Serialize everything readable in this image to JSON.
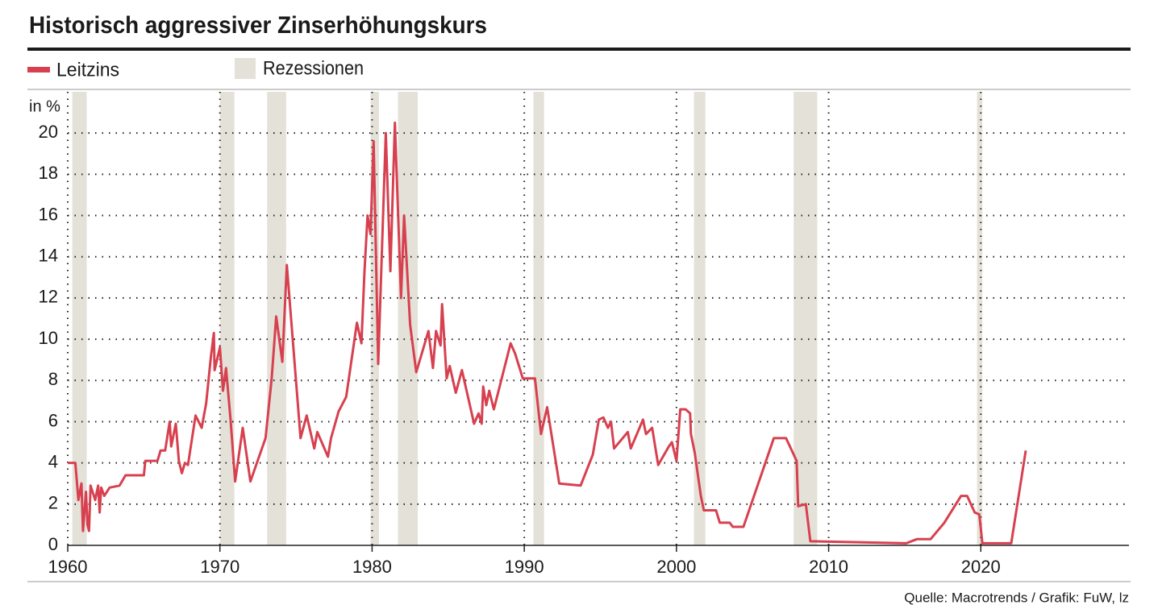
{
  "chart_data": {
    "type": "line",
    "title": "Historisch aggressiver Zinserhöhungskurs",
    "y_label": "in %",
    "source": "Quelle: Macrotrends / Grafik: FuW, lz",
    "xlim": [
      1960,
      2030
    ],
    "xticks": [
      1960,
      1970,
      1980,
      1990,
      2000,
      2010,
      2020
    ],
    "ylim": [
      0,
      22
    ],
    "yticks": [
      0,
      2,
      4,
      6,
      8,
      10,
      12,
      14,
      16,
      18,
      20
    ],
    "grid": true,
    "series": [
      {
        "name": "Leitzins",
        "color": "#d7404f",
        "x": [
          1960,
          1960.5,
          1960.7,
          1960.9,
          1961.0,
          1961.2,
          1961.3,
          1961.4,
          1961.5,
          1961.8,
          1962.0,
          1962.1,
          1962.2,
          1962.4,
          1962.75,
          1963.4,
          1963.8,
          1965.0,
          1965.1,
          1965.9,
          1966.1,
          1966.4,
          1966.7,
          1966.8,
          1967.1,
          1967.3,
          1967.5,
          1967.7,
          1967.9,
          1968.4,
          1968.8,
          1969.1,
          1969.4,
          1969.6,
          1969.65,
          1970.0,
          1970.2,
          1970.4,
          1970.7,
          1971.0,
          1971.5,
          1972.0,
          1973.0,
          1973.4,
          1973.7,
          1974.1,
          1974.4,
          1975.3,
          1975.7,
          1976.2,
          1976.4,
          1977.1,
          1977.3,
          1977.8,
          1978.3,
          1979.0,
          1979.3,
          1979.5,
          1979.7,
          1979.9,
          1980.1,
          1980.4,
          1980.9,
          1981.2,
          1981.5,
          1981.9,
          1982.1,
          1982.5,
          1982.9,
          1983.7,
          1984.0,
          1984.2,
          1984.5,
          1984.6,
          1984.9,
          1985.1,
          1985.5,
          1985.9,
          1986.7,
          1987.0,
          1987.2,
          1987.3,
          1987.5,
          1987.7,
          1988.0,
          1989.1,
          1989.4,
          1989.9,
          1990.7,
          1991.1,
          1991.5,
          1992.3,
          1993.7,
          1994.5,
          1994.9,
          1995.2,
          1995.5,
          1995.7,
          1995.9,
          1996.8,
          1997.0,
          1997.4,
          1997.8,
          1998.0,
          1998.4,
          1998.8,
          1999.5,
          1999.7,
          2000.0,
          2000.25,
          2000.6,
          2000.9,
          2000.95,
          2001.2,
          2001.6,
          2001.8,
          2002.6,
          2002.85,
          2003.5,
          2003.7,
          2004.4,
          2006.4,
          2007.2,
          2007.9,
          2008.0,
          2008.5,
          2008.8,
          2015.1,
          2015.8,
          2016.7,
          2017.6,
          2018.7,
          2019.1,
          2019.6,
          2019.9,
          2020.1,
          2022.0,
          2022.95
        ],
        "values": [
          4.0,
          4.0,
          2.2,
          3.0,
          0.7,
          2.6,
          1.0,
          0.7,
          2.9,
          2.2,
          2.9,
          1.6,
          2.8,
          2.4,
          2.8,
          2.9,
          3.4,
          3.4,
          4.1,
          4.1,
          4.6,
          4.6,
          6.0,
          4.8,
          5.9,
          4.1,
          3.5,
          4.0,
          3.9,
          6.3,
          5.7,
          6.9,
          9.1,
          10.3,
          8.5,
          9.6,
          7.5,
          8.6,
          6.1,
          3.1,
          5.7,
          3.1,
          5.2,
          8.1,
          11.1,
          8.9,
          13.6,
          5.2,
          6.3,
          4.7,
          5.5,
          4.3,
          5.2,
          6.5,
          7.2,
          10.8,
          9.8,
          13.3,
          16.0,
          15.1,
          19.6,
          8.8,
          20.0,
          13.3,
          20.5,
          12.0,
          16.0,
          10.7,
          8.4,
          10.4,
          8.6,
          10.4,
          9.7,
          11.7,
          8.1,
          8.7,
          7.4,
          8.5,
          5.9,
          6.4,
          5.9,
          7.7,
          6.8,
          7.5,
          6.6,
          9.8,
          9.3,
          8.1,
          8.1,
          5.4,
          6.7,
          3.0,
          2.9,
          4.4,
          6.1,
          6.2,
          5.7,
          6.0,
          4.7,
          5.5,
          4.7,
          5.4,
          6.1,
          5.4,
          5.7,
          3.9,
          4.8,
          5.0,
          4.1,
          6.6,
          6.6,
          6.4,
          5.4,
          4.5,
          2.4,
          1.7,
          1.7,
          1.1,
          1.1,
          0.9,
          0.9,
          5.2,
          5.2,
          4.1,
          1.9,
          2.0,
          0.2,
          0.1,
          0.3,
          0.3,
          1.1,
          2.4,
          2.4,
          1.6,
          1.5,
          0.1,
          0.1,
          4.6
        ]
      }
    ],
    "recessions": {
      "name": "Rezessionen",
      "color": "#e4e1d8",
      "ranges": [
        [
          1960.3,
          1961.25
        ],
        [
          1970.0,
          1970.95
        ],
        [
          1973.1,
          1974.35
        ],
        [
          1979.9,
          1980.45
        ],
        [
          1981.7,
          1983.0
        ],
        [
          1990.6,
          1991.3
        ],
        [
          2001.15,
          2001.9
        ],
        [
          2007.7,
          2009.25
        ],
        [
          2019.75,
          2020.1
        ]
      ]
    }
  }
}
